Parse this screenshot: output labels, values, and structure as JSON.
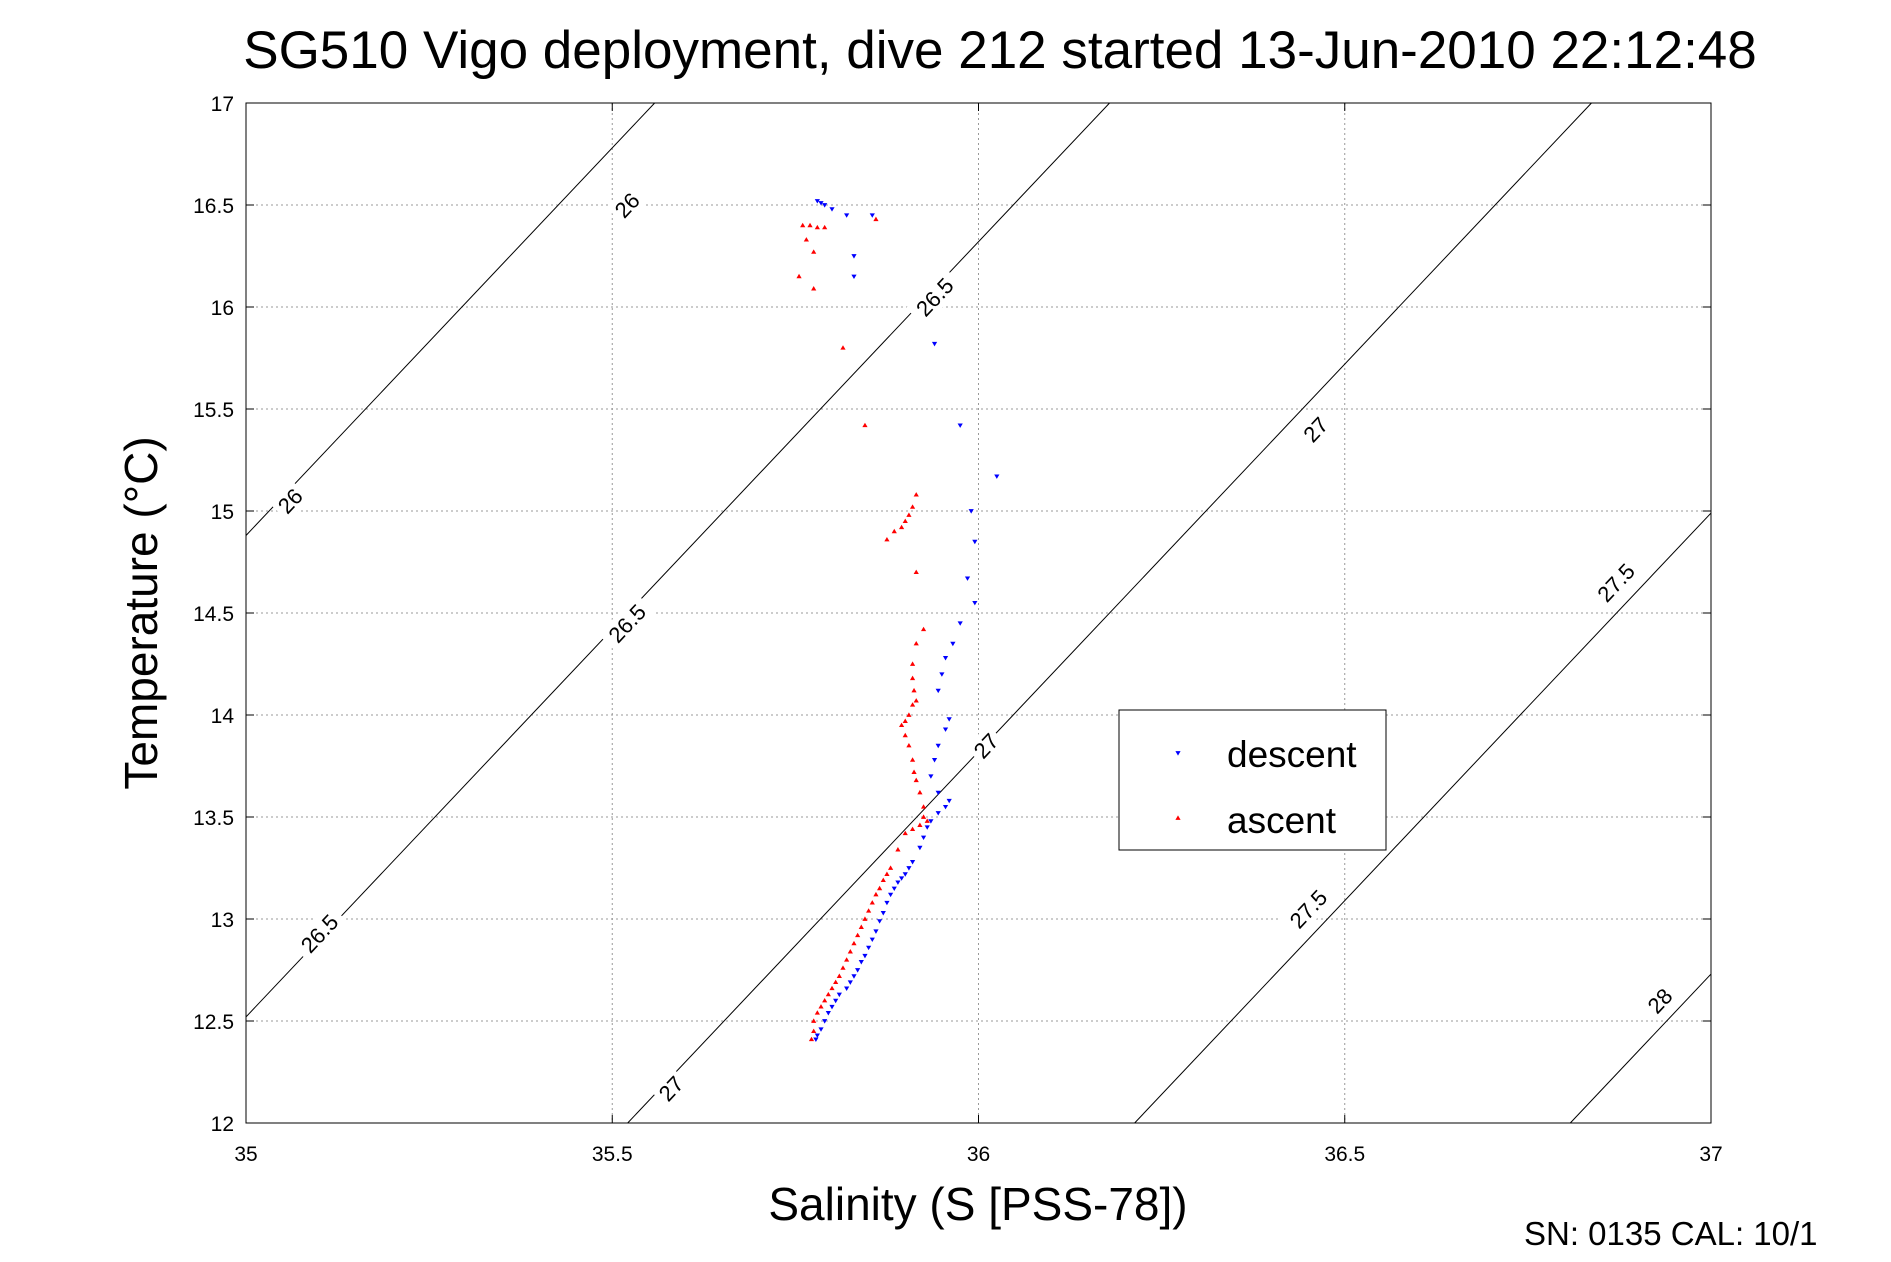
{
  "chart_data": {
    "type": "scatter",
    "title": "SG510 Vigo deployment, dive 212 started 13-Jun-2010 22:12:48",
    "xlabel": "Salinity (S [PSS-78])",
    "ylabel": "Temperature (°C)",
    "xlim": [
      35,
      37
    ],
    "ylim": [
      12,
      17
    ],
    "xticks": [
      35,
      35.5,
      36,
      36.5,
      37
    ],
    "xtick_labels": [
      "35",
      "35.5",
      "36",
      "36.5",
      "37"
    ],
    "yticks": [
      12,
      12.5,
      13,
      13.5,
      14,
      14.5,
      15,
      15.5,
      16,
      16.5,
      17
    ],
    "ytick_labels": [
      "12",
      "12.5",
      "13",
      "13.5",
      "14",
      "14.5",
      "15",
      "15.5",
      "16",
      "16.5",
      "17"
    ],
    "grid": true,
    "legend_position": "right-center",
    "density_contours": {
      "slope": 3.8,
      "lines": [
        {
          "level": 26.0,
          "t_at_s35": 14.88
        },
        {
          "level": 26.5,
          "t_at_s35": 12.52
        },
        {
          "level": 27.0,
          "t_at_s35": 10.02
        },
        {
          "level": 27.5,
          "t_at_s35": 7.39
        },
        {
          "level": 28.0,
          "t_at_s35": 5.13
        }
      ],
      "labels": [
        {
          "text": "26",
          "s": 35.52,
          "t": 16.5
        },
        {
          "text": "26",
          "s": 35.06,
          "t": 15.05
        },
        {
          "text": "26.5",
          "s": 35.94,
          "t": 16.05
        },
        {
          "text": "26.5",
          "s": 35.52,
          "t": 14.45
        },
        {
          "text": "26.5",
          "s": 35.1,
          "t": 12.93
        },
        {
          "text": "27",
          "s": 36.46,
          "t": 15.4
        },
        {
          "text": "27",
          "s": 36.01,
          "t": 13.85
        },
        {
          "text": "27",
          "s": 35.58,
          "t": 12.17
        },
        {
          "text": "27.5",
          "s": 36.87,
          "t": 14.65
        },
        {
          "text": "27.5",
          "s": 36.45,
          "t": 13.05
        },
        {
          "text": "28",
          "s": 36.93,
          "t": 12.6
        }
      ]
    },
    "series": [
      {
        "name": "descent",
        "color": "#0000ff",
        "marker": "triangle-down",
        "points": [
          [
            35.78,
            16.52
          ],
          [
            35.785,
            16.51
          ],
          [
            35.79,
            16.5
          ],
          [
            35.8,
            16.48
          ],
          [
            35.82,
            16.45
          ],
          [
            35.855,
            16.45
          ],
          [
            35.83,
            16.25
          ],
          [
            35.83,
            16.15
          ],
          [
            35.94,
            15.82
          ],
          [
            35.975,
            15.42
          ],
          [
            36.025,
            15.17
          ],
          [
            35.99,
            15.0
          ],
          [
            35.995,
            14.85
          ],
          [
            35.985,
            14.67
          ],
          [
            35.995,
            14.55
          ],
          [
            35.975,
            14.45
          ],
          [
            35.965,
            14.35
          ],
          [
            35.955,
            14.28
          ],
          [
            35.95,
            14.2
          ],
          [
            35.945,
            14.12
          ],
          [
            35.96,
            13.98
          ],
          [
            35.955,
            13.93
          ],
          [
            35.945,
            13.85
          ],
          [
            35.94,
            13.78
          ],
          [
            35.935,
            13.7
          ],
          [
            35.945,
            13.62
          ],
          [
            35.96,
            13.58
          ],
          [
            35.955,
            13.55
          ],
          [
            35.945,
            13.52
          ],
          [
            35.935,
            13.48
          ],
          [
            35.93,
            13.45
          ],
          [
            35.925,
            13.4
          ],
          [
            35.92,
            13.35
          ],
          [
            35.91,
            13.28
          ],
          [
            35.905,
            13.25
          ],
          [
            35.9,
            13.22
          ],
          [
            35.895,
            13.2
          ],
          [
            35.89,
            13.18
          ],
          [
            35.885,
            13.15
          ],
          [
            35.88,
            13.12
          ],
          [
            35.875,
            13.08
          ],
          [
            35.87,
            13.03
          ],
          [
            35.865,
            12.99
          ],
          [
            35.86,
            12.94
          ],
          [
            35.855,
            12.9
          ],
          [
            35.85,
            12.86
          ],
          [
            35.845,
            12.82
          ],
          [
            35.84,
            12.79
          ],
          [
            35.835,
            12.75
          ],
          [
            35.83,
            12.72
          ],
          [
            35.825,
            12.69
          ],
          [
            35.82,
            12.66
          ],
          [
            35.81,
            12.63
          ],
          [
            35.805,
            12.6
          ],
          [
            35.8,
            12.57
          ],
          [
            35.795,
            12.54
          ],
          [
            35.79,
            12.5
          ],
          [
            35.785,
            12.46
          ],
          [
            35.78,
            12.43
          ],
          [
            35.778,
            12.41
          ]
        ]
      },
      {
        "name": "ascent",
        "color": "#ff0000",
        "marker": "triangle-up",
        "points": [
          [
            35.76,
            16.4
          ],
          [
            35.77,
            16.4
          ],
          [
            35.78,
            16.39
          ],
          [
            35.79,
            16.39
          ],
          [
            35.86,
            16.43
          ],
          [
            35.765,
            16.33
          ],
          [
            35.775,
            16.27
          ],
          [
            35.755,
            16.15
          ],
          [
            35.775,
            16.09
          ],
          [
            35.815,
            15.8
          ],
          [
            35.845,
            15.42
          ],
          [
            35.915,
            15.08
          ],
          [
            35.91,
            15.02
          ],
          [
            35.905,
            14.98
          ],
          [
            35.9,
            14.95
          ],
          [
            35.895,
            14.92
          ],
          [
            35.885,
            14.9
          ],
          [
            35.875,
            14.86
          ],
          [
            35.915,
            14.7
          ],
          [
            35.925,
            14.42
          ],
          [
            35.915,
            14.35
          ],
          [
            35.91,
            14.25
          ],
          [
            35.91,
            14.18
          ],
          [
            35.912,
            14.12
          ],
          [
            35.915,
            14.07
          ],
          [
            35.91,
            14.05
          ],
          [
            35.905,
            14.0
          ],
          [
            35.9,
            13.97
          ],
          [
            35.895,
            13.95
          ],
          [
            35.9,
            13.9
          ],
          [
            35.905,
            13.85
          ],
          [
            35.91,
            13.78
          ],
          [
            35.912,
            13.72
          ],
          [
            35.915,
            13.68
          ],
          [
            35.92,
            13.62
          ],
          [
            35.925,
            13.55
          ],
          [
            35.925,
            13.5
          ],
          [
            35.93,
            13.48
          ],
          [
            35.92,
            13.46
          ],
          [
            35.91,
            13.44
          ],
          [
            35.9,
            13.42
          ],
          [
            35.89,
            13.34
          ],
          [
            35.88,
            13.25
          ],
          [
            35.875,
            13.22
          ],
          [
            35.87,
            13.19
          ],
          [
            35.865,
            13.15
          ],
          [
            35.86,
            13.12
          ],
          [
            35.855,
            13.08
          ],
          [
            35.85,
            13.04
          ],
          [
            35.845,
            13.0
          ],
          [
            35.84,
            12.96
          ],
          [
            35.835,
            12.92
          ],
          [
            35.83,
            12.88
          ],
          [
            35.825,
            12.84
          ],
          [
            35.82,
            12.8
          ],
          [
            35.815,
            12.76
          ],
          [
            35.81,
            12.72
          ],
          [
            35.805,
            12.69
          ],
          [
            35.8,
            12.66
          ],
          [
            35.795,
            12.63
          ],
          [
            35.79,
            12.6
          ],
          [
            35.785,
            12.57
          ],
          [
            35.78,
            12.54
          ],
          [
            35.775,
            12.5
          ],
          [
            35.775,
            12.45
          ],
          [
            35.772,
            12.41
          ]
        ]
      }
    ],
    "footer": "SN: 0135  CAL: 10/1"
  }
}
